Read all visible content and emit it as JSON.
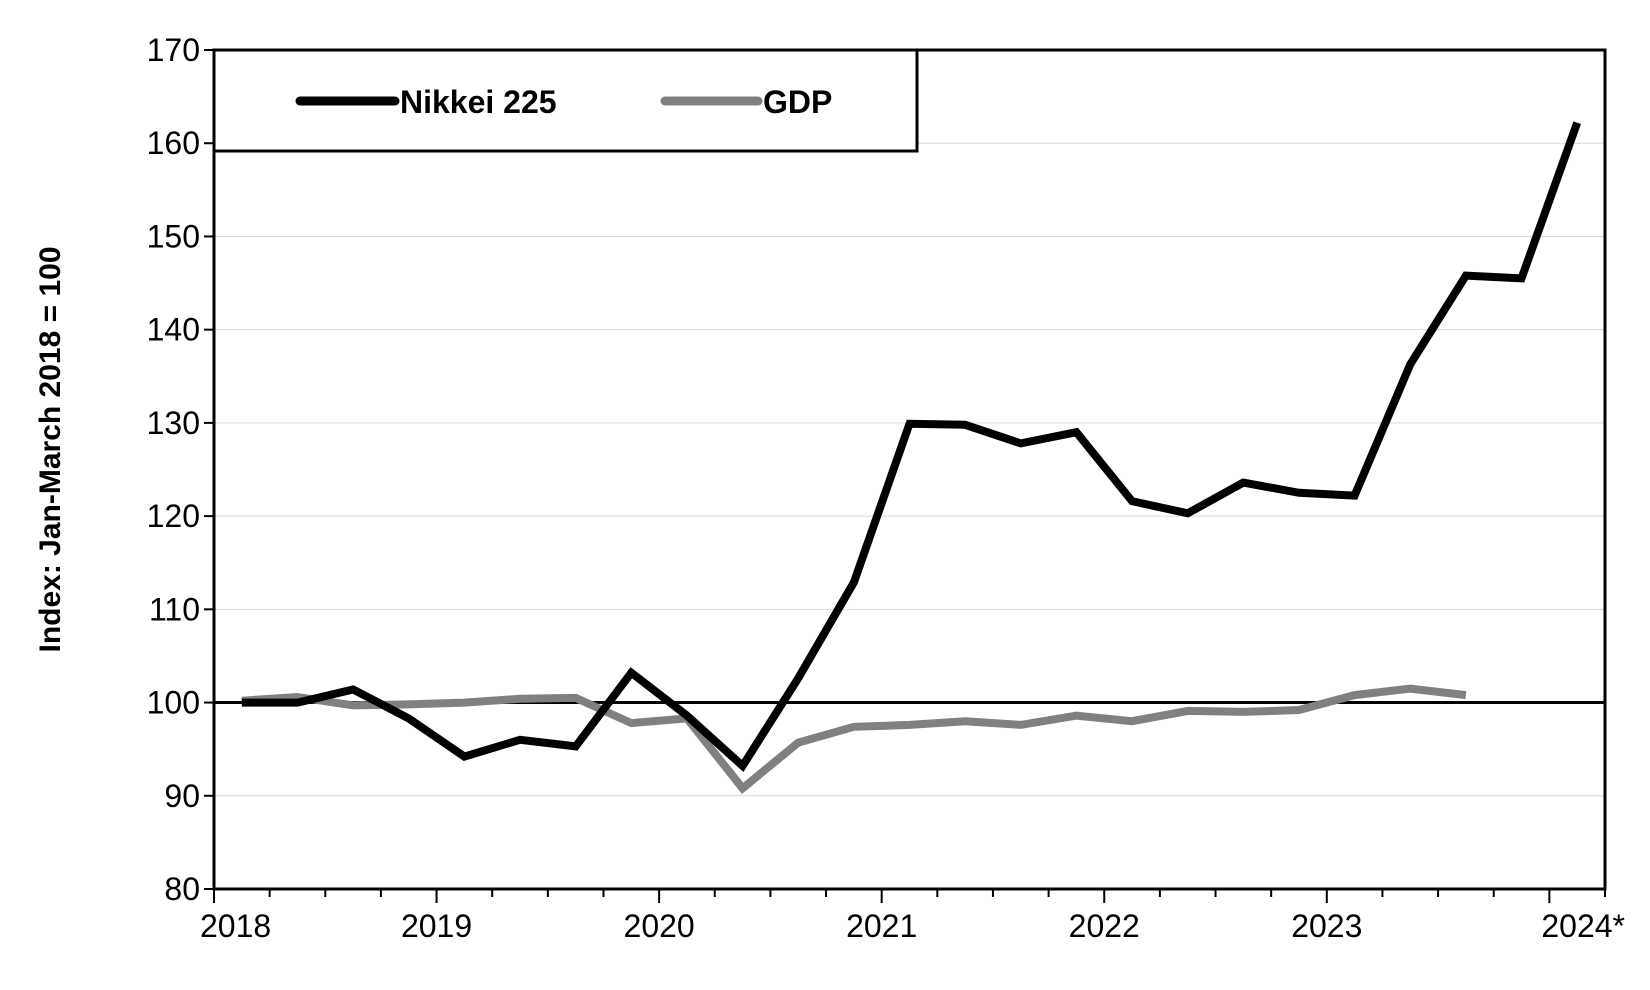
{
  "chart_data": {
    "type": "line",
    "ylabel": "Index: Jan-March 2018 = 100",
    "ylim": [
      80,
      170
    ],
    "yticks": [
      80,
      90,
      100,
      110,
      120,
      130,
      140,
      150,
      160,
      170
    ],
    "grid": true,
    "legend": "top-left",
    "reference_line": 100,
    "x_tick_labels": [
      "2018",
      "2019",
      "2020",
      "2021",
      "2022",
      "2023",
      "2024*"
    ],
    "series": [
      {
        "name": "Nikkei 225",
        "color": "#000000",
        "values": [
          100,
          100,
          101.4,
          98.3,
          94.2,
          96,
          95.3,
          103.2,
          98.6,
          93.2,
          102.6,
          112.9,
          129.9,
          129.8,
          127.8,
          129,
          121.6,
          120.3,
          123.6,
          122.5,
          122.2,
          136.3,
          145.8,
          145.5,
          162.2
        ]
      },
      {
        "name": "GDP",
        "color": "#808080",
        "values": [
          100.2,
          100.6,
          99.7,
          99.8,
          100,
          100.4,
          100.5,
          97.8,
          98.3,
          90.8,
          95.7,
          97.4,
          97.6,
          98,
          97.6,
          98.6,
          98,
          99.1,
          99,
          99.2,
          100.8,
          101.5,
          100.8
        ]
      }
    ]
  }
}
